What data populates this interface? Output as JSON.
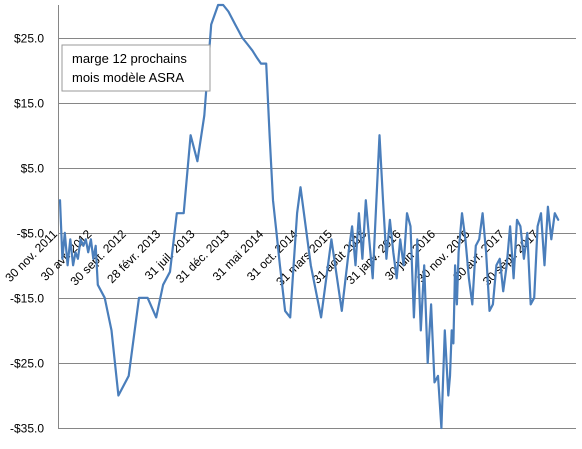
{
  "chart_data": {
    "type": "line",
    "title": "",
    "xlabel": "",
    "ylabel": "",
    "ylim": [
      -35,
      30
    ],
    "y_ticks": [
      25,
      15,
      5,
      -5,
      -15,
      -25,
      -35
    ],
    "y_tick_labels": [
      "$25.0",
      "$15.0",
      "$5.0",
      "-$5.0",
      "-$15.0",
      "-$25.0",
      "-$35.0"
    ],
    "grid": true,
    "legend_placement": "top-left",
    "x_tick_labels": [
      "30 nov. 2011",
      "30 avr. 2012",
      "30 sept. 2012",
      "28 févr. 2013",
      "31 juil. 2013",
      "31 déc. 2013",
      "31 mai 2014",
      "31 oct. 2014",
      "31 mars 2015",
      "31 août 2015",
      "31 janv. 2016",
      "30 juin 2016",
      "30 nov. 2016",
      "30 avr. 2017",
      "30 sept. 2017"
    ],
    "series": [
      {
        "name": "marge 12  prochains mois modèle ASRA",
        "color": "#4a7ebb",
        "x_index": [
          0,
          0.07,
          0.14,
          0.22,
          0.3,
          0.38,
          0.45,
          0.52,
          0.6,
          0.68,
          0.75,
          0.82,
          0.9,
          0.97,
          1.04,
          1.1,
          1.3,
          1.5,
          1.7,
          2.0,
          2.3,
          2.55,
          2.8,
          3.0,
          3.2,
          3.4,
          3.6,
          3.8,
          4.0,
          4.2,
          4.4,
          4.6,
          4.75,
          4.9,
          5.0,
          5.1,
          5.2,
          5.3,
          5.45,
          5.6,
          5.72,
          5.85,
          6.0,
          6.1,
          6.2,
          6.3,
          6.4,
          6.55,
          6.7,
          6.8,
          6.9,
          7.0,
          7.3,
          7.6,
          7.9,
          8.2,
          8.4,
          8.5,
          8.6,
          8.7,
          8.8,
          8.9,
          9.0,
          9.1,
          9.2,
          9.3,
          9.4,
          9.5,
          9.6,
          9.7,
          9.8,
          9.9,
          10.0,
          10.1,
          10.2,
          10.3,
          10.4,
          10.5,
          10.6,
          10.7,
          10.8,
          10.9,
          11.0,
          11.1,
          11.2,
          11.3,
          11.35,
          11.4,
          11.45,
          11.5,
          11.55,
          11.6,
          11.7,
          11.8,
          11.9,
          12.0,
          12.1,
          12.2,
          12.3,
          12.4,
          12.5,
          12.6,
          12.7,
          12.8,
          12.9,
          13.0,
          13.1,
          13.2,
          13.3,
          13.4,
          13.5,
          13.6,
          13.7,
          13.8,
          13.9,
          14.0,
          14.1,
          14.2,
          14.3,
          14.4,
          14.5
        ],
        "values": [
          0,
          -9,
          -5,
          -10,
          -6,
          -10,
          -8,
          -9,
          -6,
          -7,
          -6,
          -8,
          -6,
          -9,
          -7,
          -13,
          -15,
          -20,
          -30,
          -27,
          -15,
          -15,
          -18,
          -13,
          -11,
          -2,
          -2,
          10,
          6,
          13,
          27,
          30,
          30,
          29,
          28,
          27,
          26,
          25,
          24,
          23,
          22,
          21,
          21,
          10,
          0,
          -5,
          -10,
          -17,
          -18,
          -10,
          -2,
          2,
          -10,
          -18,
          -6,
          -17,
          -8,
          -4,
          -10,
          -2,
          -9,
          0,
          -6,
          -12,
          -1,
          10,
          0,
          -9,
          -3,
          -8,
          -12,
          -6,
          -10,
          -2,
          -4,
          -18,
          -6,
          -20,
          -10,
          -25,
          -16,
          -28,
          -27,
          -35,
          -20,
          -30,
          -27,
          -20,
          -22,
          -10,
          -16,
          -8,
          -2,
          -6,
          -12,
          -16,
          -7,
          -6,
          -2,
          -8,
          -17,
          -16,
          -10,
          -9,
          -14,
          -10,
          -4,
          -12,
          -3,
          -4,
          -9,
          -5,
          -16,
          -15,
          -4,
          -2,
          -10,
          -1,
          -6,
          -2,
          -3
        ]
      }
    ]
  }
}
